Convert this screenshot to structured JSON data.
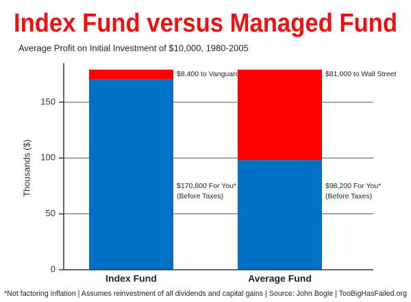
{
  "chart_data": {
    "type": "stacked-bar",
    "title": "Index Fund versus Managed Fund",
    "subtitle": "Average Profit on Initial Investment of $10,000, 1980-2005",
    "y_label": "Thousands ($)",
    "footnote": "*Not factoring inflation  |  Assumes reinvestment of all dividends and capital gains  |  Source: John Bogle  |  TooBigHasFailed.org",
    "categories": [
      "Index Fund",
      "Average Fund"
    ],
    "series": [
      {
        "color": "#0072c6",
        "values": [
          170.8,
          98.2
        ],
        "value_labels": [
          "$170,800 For You*",
          "$98,200 For You*"
        ],
        "value_notes": [
          "(Before Taxes)",
          "(Before Taxes)"
        ]
      },
      {
        "color": "#ff0000",
        "values": [
          8.4,
          81
        ],
        "value_labels": [
          "$8,400 to Vanguard",
          "$81,000 to Wall Street"
        ]
      }
    ],
    "ylim": [
      0,
      185
    ],
    "yticks": [
      0,
      50,
      100,
      150
    ],
    "grid": true
  }
}
